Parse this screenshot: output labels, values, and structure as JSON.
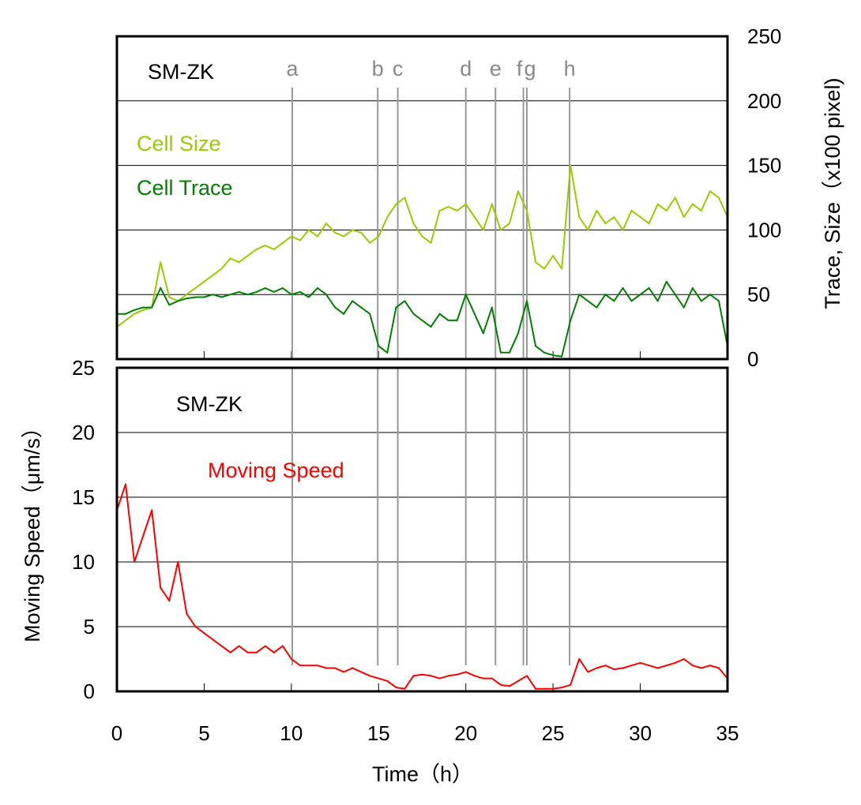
{
  "chart_data": [
    {
      "type": "line",
      "panel": "top",
      "annotation": "SM-ZK",
      "ylabel": "Trace, Size（x100 pixel)",
      "y_axis_side": "right",
      "ylim": [
        0,
        250
      ],
      "yticks": [
        0,
        50,
        100,
        150,
        200,
        250
      ],
      "xlim": [
        0,
        35
      ],
      "grid": true,
      "markers": [
        {
          "label": "a",
          "x": 10.05
        },
        {
          "label": "b",
          "x": 14.95
        },
        {
          "label": "c",
          "x": 16.1
        },
        {
          "label": "d",
          "x": 20.0
        },
        {
          "label": "e",
          "x": 21.7
        },
        {
          "label": "f",
          "x": 23.3
        },
        {
          "label": "g",
          "x": 23.5
        },
        {
          "label": "h",
          "x": 25.95
        }
      ],
      "x": [
        0,
        0.5,
        1,
        1.5,
        2,
        2.5,
        3,
        3.5,
        4,
        4.5,
        5,
        5.5,
        6,
        6.5,
        7,
        7.5,
        8,
        8.5,
        9,
        9.5,
        10,
        10.5,
        11,
        11.5,
        12,
        12.5,
        13,
        13.5,
        14,
        14.5,
        15,
        15.5,
        16,
        16.5,
        17,
        17.5,
        18,
        18.5,
        19,
        19.5,
        20,
        20.5,
        21,
        21.5,
        22,
        22.5,
        23,
        23.5,
        24,
        24.5,
        25,
        25.5,
        26,
        26.5,
        27,
        27.5,
        28,
        28.5,
        29,
        29.5,
        30,
        30.5,
        31,
        31.5,
        32,
        32.5,
        33,
        33.5,
        34,
        34.5,
        35
      ],
      "series": [
        {
          "name": "Cell Size",
          "color": "#99cc00",
          "values": [
            25,
            30,
            35,
            38,
            40,
            75,
            48,
            45,
            50,
            55,
            60,
            65,
            70,
            78,
            75,
            80,
            85,
            88,
            85,
            90,
            95,
            92,
            100,
            95,
            105,
            98,
            95,
            100,
            98,
            90,
            95,
            110,
            120,
            125,
            105,
            95,
            90,
            115,
            118,
            115,
            120,
            110,
            100,
            120,
            100,
            105,
            130,
            115,
            75,
            70,
            80,
            70,
            150,
            110,
            100,
            115,
            105,
            110,
            100,
            115,
            110,
            105,
            120,
            115,
            125,
            110,
            120,
            115,
            130,
            125,
            110
          ]
        },
        {
          "name": "Cell Trace",
          "color": "#008000",
          "values": [
            35,
            35,
            38,
            40,
            40,
            55,
            42,
            45,
            47,
            48,
            48,
            50,
            48,
            50,
            52,
            50,
            52,
            55,
            52,
            55,
            50,
            52,
            48,
            55,
            50,
            40,
            35,
            45,
            40,
            35,
            10,
            5,
            40,
            45,
            35,
            30,
            25,
            35,
            30,
            30,
            50,
            35,
            20,
            40,
            5,
            5,
            20,
            45,
            10,
            5,
            3,
            2,
            30,
            50,
            45,
            40,
            50,
            45,
            55,
            45,
            50,
            55,
            45,
            60,
            50,
            40,
            55,
            45,
            50,
            45,
            10
          ]
        }
      ]
    },
    {
      "type": "line",
      "panel": "bottom",
      "annotation": "SM-ZK",
      "xlabel": "Time（h）",
      "ylabel": "Moving Speed（μm/s）",
      "y_axis_side": "left",
      "ylim": [
        0,
        25
      ],
      "yticks": [
        0,
        5,
        10,
        15,
        20,
        25
      ],
      "xlim": [
        0,
        35
      ],
      "xticks": [
        0,
        5,
        10,
        15,
        20,
        25,
        30,
        35
      ],
      "grid": true,
      "x": [
        0,
        0.5,
        1,
        1.5,
        2,
        2.5,
        3,
        3.5,
        4,
        4.5,
        5,
        5.5,
        6,
        6.5,
        7,
        7.5,
        8,
        8.5,
        9,
        9.5,
        10,
        10.5,
        11,
        11.5,
        12,
        12.5,
        13,
        13.5,
        14,
        14.5,
        15,
        15.5,
        16,
        16.5,
        17,
        17.5,
        18,
        18.5,
        19,
        19.5,
        20,
        20.5,
        21,
        21.5,
        22,
        22.5,
        23,
        23.5,
        24,
        24.5,
        25,
        25.5,
        26,
        26.5,
        27,
        27.5,
        28,
        28.5,
        29,
        29.5,
        30,
        30.5,
        31,
        31.5,
        32,
        32.5,
        33,
        33.5,
        34,
        34.5,
        35
      ],
      "series": [
        {
          "name": "Moving Speed",
          "color": "#ff0000",
          "values": [
            14,
            16,
            10,
            12,
            14,
            8,
            7,
            10,
            6,
            5,
            4.5,
            4,
            3.5,
            3,
            3.5,
            3,
            3,
            3.5,
            3,
            3.5,
            2.5,
            2,
            2,
            2,
            1.8,
            1.8,
            1.5,
            1.8,
            1.5,
            1.2,
            1,
            0.8,
            0.3,
            0.2,
            1.2,
            1.3,
            1.2,
            1,
            1.2,
            1.3,
            1.5,
            1.2,
            1,
            1,
            0.5,
            0.4,
            0.8,
            1.2,
            0.2,
            0.2,
            0.2,
            0.3,
            0.5,
            2.5,
            1.5,
            1.8,
            2,
            1.7,
            1.8,
            2,
            2.2,
            2,
            1.8,
            2,
            2.2,
            2.5,
            2,
            1.8,
            2,
            1.8,
            1
          ]
        }
      ]
    }
  ]
}
